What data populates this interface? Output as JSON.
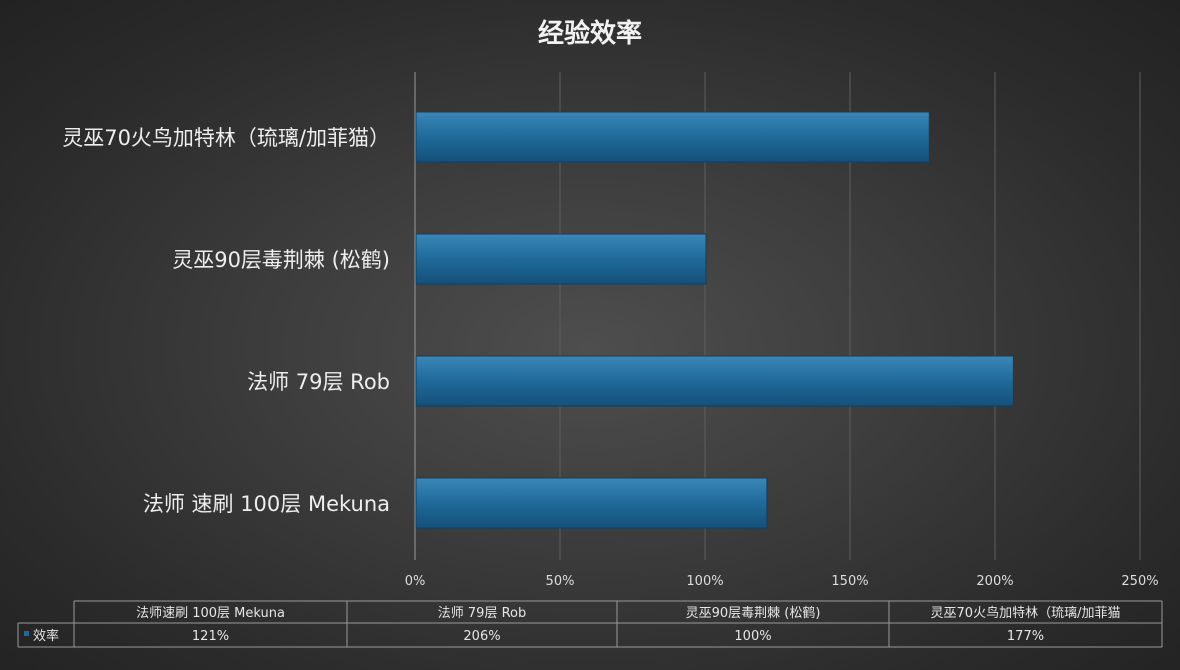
{
  "chart_data": {
    "type": "bar",
    "orientation": "horizontal",
    "title": "经验效率",
    "categories": [
      "法师 速刷 100层 Mekuna",
      "法师 79层 Rob",
      "灵巫90层毒荆棘 (松鹤)",
      "灵巫70火鸟加特林（琉璃/加菲猫）"
    ],
    "table_categories": [
      "法师速刷 100层 Mekuna",
      "法师 79层 Rob",
      "灵巫90层毒荆棘 (松鹤)",
      "灵巫70火鸟加特林（琉璃/加菲猫"
    ],
    "series": [
      {
        "name": "效率",
        "values": [
          121,
          206,
          100,
          177
        ],
        "value_labels": [
          "121%",
          "206%",
          "100%",
          "177%"
        ],
        "color": "#1f6a99"
      }
    ],
    "xlim": [
      0,
      250
    ],
    "xticks": [
      0,
      50,
      100,
      150,
      200,
      250
    ],
    "xtick_labels": [
      "0%",
      "50%",
      "100%",
      "150%",
      "200%",
      "250%"
    ],
    "grid": true,
    "data_table": true,
    "legend": "data-table"
  }
}
